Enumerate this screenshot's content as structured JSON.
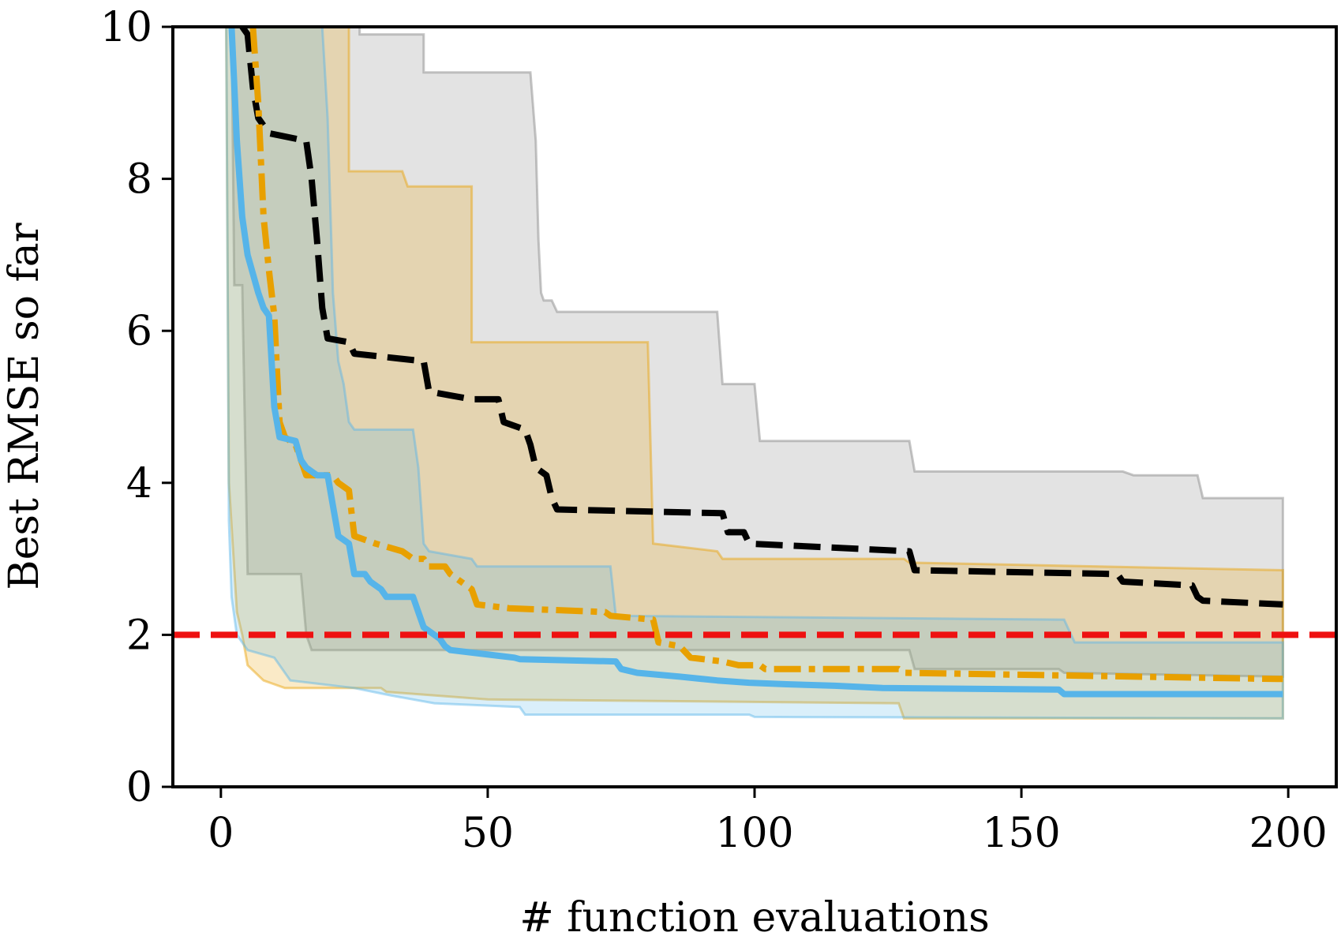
{
  "chart_data": {
    "type": "line",
    "title": "",
    "xlabel": "# function evaluations",
    "ylabel": "Best RMSE so far",
    "xlim": [
      -9,
      209
    ],
    "ylim": [
      0,
      10
    ],
    "xticks": [
      0,
      50,
      100,
      150,
      200
    ],
    "xtick_labels": [
      "0",
      "50",
      "100",
      "150",
      "200"
    ],
    "yticks": [
      0,
      2,
      4,
      6,
      8,
      10
    ],
    "ytick_labels": [
      "0",
      "2",
      "4",
      "6",
      "8",
      "10"
    ],
    "grid": false,
    "threshold": {
      "y": 2,
      "color": "#ee1111",
      "style": "dashed"
    },
    "series": [
      {
        "name": "black-dashed",
        "color": "#000000",
        "style": "dashed",
        "band_color": "#808080",
        "median": [
          [
            4,
            10
          ],
          [
            5,
            9.9
          ],
          [
            6,
            9.2
          ],
          [
            7,
            8.8
          ],
          [
            9,
            8.6
          ],
          [
            16,
            8.5
          ],
          [
            17,
            8.0
          ],
          [
            18,
            7.2
          ],
          [
            19,
            6.3
          ],
          [
            20,
            5.9
          ],
          [
            24,
            5.85
          ],
          [
            25,
            5.7
          ],
          [
            38,
            5.6
          ],
          [
            39,
            5.2
          ],
          [
            43,
            5.15
          ],
          [
            47,
            5.1
          ],
          [
            52,
            5.1
          ],
          [
            53,
            4.8
          ],
          [
            57,
            4.7
          ],
          [
            58,
            4.5
          ],
          [
            59,
            4.2
          ],
          [
            61,
            4.1
          ],
          [
            62,
            3.8
          ],
          [
            63,
            3.65
          ],
          [
            94,
            3.6
          ],
          [
            95,
            3.35
          ],
          [
            98,
            3.35
          ],
          [
            99,
            3.2
          ],
          [
            129,
            3.1
          ],
          [
            130,
            2.85
          ],
          [
            168,
            2.8
          ],
          [
            169,
            2.7
          ],
          [
            182,
            2.65
          ],
          [
            183,
            2.5
          ],
          [
            184,
            2.45
          ],
          [
            199,
            2.4
          ]
        ],
        "upper": [
          [
            5,
            10
          ],
          [
            26,
            10
          ],
          [
            26,
            9.9
          ],
          [
            38,
            9.9
          ],
          [
            38,
            9.4
          ],
          [
            58,
            9.4
          ],
          [
            59,
            8.5
          ],
          [
            59.5,
            7.2
          ],
          [
            60,
            6.5
          ],
          [
            60.5,
            6.4
          ],
          [
            62,
            6.4
          ],
          [
            63,
            6.25
          ],
          [
            93,
            6.25
          ],
          [
            94,
            5.3
          ],
          [
            100,
            5.3
          ],
          [
            101,
            4.55
          ],
          [
            129,
            4.55
          ],
          [
            130,
            4.15
          ],
          [
            169,
            4.15
          ],
          [
            171,
            4.1
          ],
          [
            183,
            4.1
          ],
          [
            184,
            3.8
          ],
          [
            199,
            3.8
          ]
        ],
        "lower": [
          [
            2,
            10
          ],
          [
            2.5,
            6.6
          ],
          [
            4,
            6.6
          ],
          [
            5,
            2.8
          ],
          [
            15,
            2.8
          ],
          [
            16,
            2.0
          ],
          [
            17,
            1.8
          ],
          [
            129,
            1.8
          ],
          [
            130,
            1.55
          ],
          [
            157,
            1.55
          ],
          [
            158,
            1.5
          ],
          [
            199,
            1.45
          ]
        ]
      },
      {
        "name": "orange-dashdot",
        "color": "#e8a000",
        "style": "dashdot",
        "band_color": "#e8a000",
        "median": [
          [
            6,
            10
          ],
          [
            7,
            9.0
          ],
          [
            8,
            7.5
          ],
          [
            9,
            6.8
          ],
          [
            10,
            6.2
          ],
          [
            10.5,
            5.5
          ],
          [
            11,
            4.8
          ],
          [
            12,
            4.6
          ],
          [
            14,
            4.5
          ],
          [
            15,
            4.3
          ],
          [
            16,
            4.1
          ],
          [
            21,
            4.1
          ],
          [
            22,
            4.0
          ],
          [
            24,
            3.9
          ],
          [
            25,
            3.3
          ],
          [
            29,
            3.2
          ],
          [
            34,
            3.1
          ],
          [
            36,
            3.0
          ],
          [
            38,
            3.0
          ],
          [
            39,
            2.9
          ],
          [
            42,
            2.9
          ],
          [
            43,
            2.8
          ],
          [
            47,
            2.6
          ],
          [
            48,
            2.4
          ],
          [
            54,
            2.35
          ],
          [
            72,
            2.3
          ],
          [
            73,
            2.25
          ],
          [
            81,
            2.2
          ],
          [
            82,
            1.9
          ],
          [
            86,
            1.85
          ],
          [
            88,
            1.7
          ],
          [
            94,
            1.65
          ],
          [
            97,
            1.6
          ],
          [
            101,
            1.6
          ],
          [
            102,
            1.55
          ],
          [
            127,
            1.55
          ],
          [
            128,
            1.5
          ],
          [
            198,
            1.42
          ],
          [
            199,
            1.42
          ]
        ],
        "upper": [
          [
            5,
            10
          ],
          [
            24,
            10
          ],
          [
            24,
            8.1
          ],
          [
            34,
            8.1
          ],
          [
            35,
            7.9
          ],
          [
            47,
            7.9
          ],
          [
            47,
            5.85
          ],
          [
            80,
            5.85
          ],
          [
            81,
            3.2
          ],
          [
            93,
            3.1
          ],
          [
            94,
            3.0
          ],
          [
            128,
            3.0
          ],
          [
            129,
            2.95
          ],
          [
            199,
            2.85
          ]
        ],
        "lower": [
          [
            1,
            10
          ],
          [
            1.5,
            4.0
          ],
          [
            3,
            2.3
          ],
          [
            4,
            2.0
          ],
          [
            5,
            1.6
          ],
          [
            8,
            1.4
          ],
          [
            10,
            1.35
          ],
          [
            12,
            1.3
          ],
          [
            30,
            1.3
          ],
          [
            31,
            1.25
          ],
          [
            50,
            1.15
          ],
          [
            127,
            1.1
          ],
          [
            128,
            0.9
          ],
          [
            199,
            0.9
          ]
        ]
      },
      {
        "name": "blue-solid",
        "color": "#56b4e9",
        "style": "solid",
        "band_color": "#56b4e9",
        "median": [
          [
            2,
            10
          ],
          [
            3,
            8.5
          ],
          [
            4,
            7.5
          ],
          [
            5,
            7.0
          ],
          [
            7,
            6.5
          ],
          [
            8,
            6.3
          ],
          [
            9,
            6.2
          ],
          [
            10,
            5.0
          ],
          [
            11,
            4.6
          ],
          [
            14,
            4.55
          ],
          [
            15,
            4.3
          ],
          [
            16,
            4.2
          ],
          [
            18,
            4.1
          ],
          [
            20,
            4.1
          ],
          [
            21,
            3.7
          ],
          [
            22,
            3.3
          ],
          [
            24,
            3.2
          ],
          [
            25,
            2.8
          ],
          [
            27,
            2.8
          ],
          [
            28,
            2.7
          ],
          [
            30,
            2.6
          ],
          [
            31,
            2.5
          ],
          [
            36,
            2.5
          ],
          [
            37,
            2.3
          ],
          [
            38,
            2.1
          ],
          [
            41,
            1.95
          ],
          [
            42,
            1.85
          ],
          [
            43,
            1.8
          ],
          [
            49,
            1.75
          ],
          [
            55,
            1.7
          ],
          [
            56,
            1.68
          ],
          [
            74,
            1.65
          ],
          [
            75,
            1.55
          ],
          [
            78,
            1.5
          ],
          [
            86,
            1.45
          ],
          [
            93,
            1.4
          ],
          [
            99,
            1.37
          ],
          [
            106,
            1.35
          ],
          [
            115,
            1.33
          ],
          [
            124,
            1.3
          ],
          [
            157,
            1.28
          ],
          [
            158,
            1.22
          ],
          [
            199,
            1.22
          ]
        ],
        "upper": [
          [
            3,
            10
          ],
          [
            19,
            10
          ],
          [
            20,
            8.8
          ],
          [
            21,
            6.5
          ],
          [
            22,
            5.6
          ],
          [
            23,
            5.3
          ],
          [
            24,
            4.8
          ],
          [
            25,
            4.7
          ],
          [
            36,
            4.7
          ],
          [
            37,
            4.2
          ],
          [
            38,
            3.2
          ],
          [
            39,
            3.1
          ],
          [
            47,
            3.0
          ],
          [
            48,
            2.9
          ],
          [
            73,
            2.9
          ],
          [
            74,
            2.25
          ],
          [
            158,
            2.2
          ],
          [
            159,
            2.05
          ],
          [
            160,
            1.9
          ],
          [
            199,
            1.9
          ]
        ],
        "lower": [
          [
            1,
            10
          ],
          [
            1.5,
            3.5
          ],
          [
            2,
            2.5
          ],
          [
            3,
            2.0
          ],
          [
            5,
            1.8
          ],
          [
            10,
            1.7
          ],
          [
            13,
            1.4
          ],
          [
            25,
            1.3
          ],
          [
            32,
            1.2
          ],
          [
            40,
            1.1
          ],
          [
            56,
            1.05
          ],
          [
            57,
            0.95
          ],
          [
            99,
            0.95
          ],
          [
            100,
            0.92
          ],
          [
            199,
            0.9
          ]
        ]
      }
    ]
  }
}
